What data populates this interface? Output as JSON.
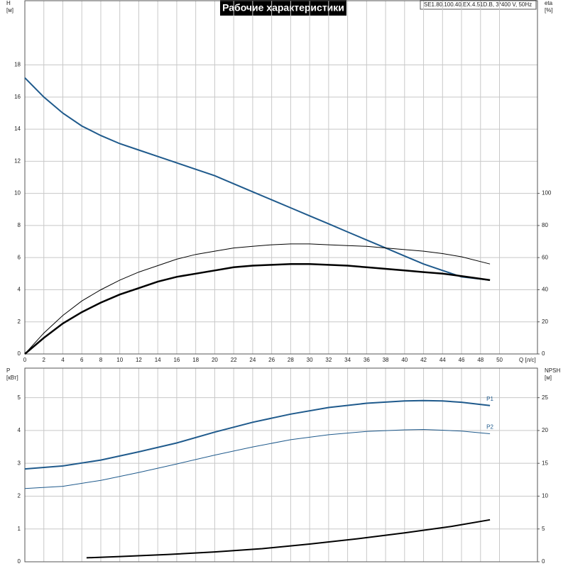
{
  "chart_data": [
    {
      "type": "line",
      "title": "Рабочие характеристики",
      "subtitle": "SE1.80.100.40.EX.4.51D.B, 3*400 V, 50Hz",
      "ylabel": [
        "H",
        "[м]"
      ],
      "y2label": [
        "eta",
        "[%]"
      ],
      "xlabel": "Q [л/с]",
      "xlim": [
        0,
        54
      ],
      "xticks": [
        0,
        2,
        4,
        6,
        8,
        10,
        12,
        14,
        16,
        18,
        20,
        22,
        24,
        26,
        28,
        30,
        32,
        34,
        36,
        38,
        40,
        42,
        44,
        46,
        48,
        50
      ],
      "ylim": [
        0,
        22
      ],
      "yticks": [
        0,
        2,
        4,
        6,
        8,
        10,
        12,
        14,
        16,
        18
      ],
      "y2lim": [
        0,
        220
      ],
      "y2ticks": [
        0,
        20,
        40,
        60,
        80,
        100
      ],
      "grid": true,
      "x": [
        0,
        2,
        4,
        6,
        8,
        10,
        12,
        14,
        16,
        18,
        20,
        22,
        24,
        26,
        28,
        30,
        32,
        34,
        36,
        38,
        40,
        42,
        44,
        46,
        49
      ],
      "series": [
        {
          "color": "#1f5a8c",
          "width": 2,
          "values": [
            17.2,
            16.0,
            15.0,
            14.2,
            13.6,
            13.1,
            12.7,
            12.3,
            11.9,
            11.5,
            11.1,
            10.6,
            10.1,
            9.6,
            9.1,
            8.6,
            8.1,
            7.6,
            7.1,
            6.6,
            6.1,
            5.6,
            5.2,
            4.8,
            4.6
          ]
        },
        {
          "color": "#000000",
          "width": 1,
          "axis": "y2",
          "values": [
            0,
            13,
            24,
            33,
            40,
            46,
            51,
            55,
            59,
            62,
            64,
            66,
            67,
            68,
            68.5,
            68.5,
            68,
            67.5,
            67,
            66,
            65,
            64,
            62.5,
            60.5,
            56
          ]
        },
        {
          "color": "#000000",
          "width": 2.5,
          "axis": "y2",
          "values": [
            0,
            10,
            19,
            26,
            32,
            37,
            41,
            45,
            48,
            50,
            52,
            54,
            55,
            55.5,
            56,
            56,
            55.5,
            55,
            54,
            53,
            52,
            51,
            50,
            48.5,
            46
          ]
        }
      ]
    },
    {
      "type": "line",
      "ylabel": [
        "P",
        "[кВт]"
      ],
      "y2label": [
        "NPSH",
        "[м]"
      ],
      "xlim": [
        0,
        54
      ],
      "xticks": [
        0,
        2,
        4,
        6,
        8,
        10,
        12,
        14,
        16,
        18,
        20,
        22,
        24,
        26,
        28,
        30,
        32,
        34,
        36,
        38,
        40,
        42,
        44,
        46,
        48,
        50
      ],
      "show_xtick_labels": false,
      "ylim": [
        0,
        5.9
      ],
      "yticks": [
        0,
        1,
        2,
        3,
        4,
        5
      ],
      "y2lim": [
        0,
        29.5
      ],
      "y2ticks": [
        0,
        5,
        10,
        15,
        20,
        25
      ],
      "grid": true,
      "series": [
        {
          "name": "P1",
          "color": "#1f5a8c",
          "width": 2,
          "x": [
            0,
            4,
            8,
            12,
            16,
            20,
            24,
            28,
            32,
            36,
            40,
            42,
            44,
            46,
            49
          ],
          "values": [
            2.83,
            2.92,
            3.1,
            3.35,
            3.62,
            3.95,
            4.25,
            4.5,
            4.7,
            4.83,
            4.9,
            4.91,
            4.9,
            4.86,
            4.76
          ]
        },
        {
          "name": "P2",
          "color": "#1f5a8c",
          "width": 1,
          "x": [
            0,
            4,
            8,
            12,
            16,
            20,
            24,
            28,
            32,
            36,
            40,
            42,
            44,
            46,
            49
          ],
          "values": [
            2.23,
            2.3,
            2.48,
            2.72,
            2.98,
            3.25,
            3.5,
            3.72,
            3.87,
            3.97,
            4.02,
            4.03,
            4.01,
            3.98,
            3.9
          ]
        },
        {
          "color": "#000000",
          "width": 2,
          "axis": "y2",
          "x": [
            6.5,
            10,
            15,
            20,
            25,
            30,
            35,
            40,
            45,
            49
          ],
          "values": [
            0.6,
            0.8,
            1.1,
            1.5,
            2.0,
            2.7,
            3.5,
            4.4,
            5.4,
            6.4
          ]
        }
      ]
    }
  ]
}
